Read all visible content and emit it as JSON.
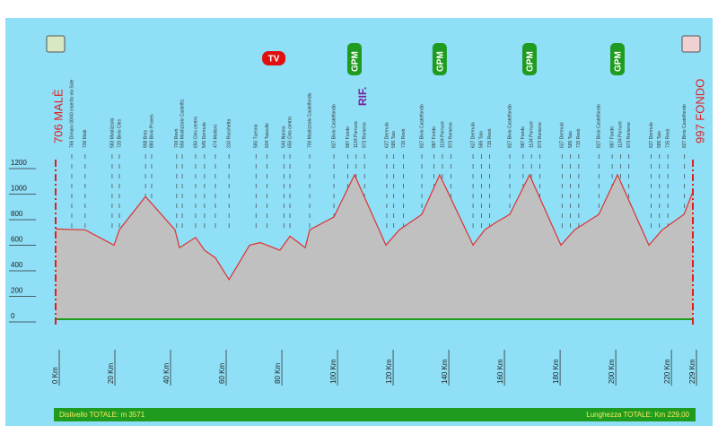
{
  "chart_data": {
    "type": "area",
    "start_label": "706 MALÈ",
    "finish_label": "997 FONDO",
    "x": [
      0,
      10.6,
      21,
      22.9,
      32.3,
      42.9,
      44.5,
      50.3,
      53.5,
      57.4,
      62.3,
      69.7,
      73.5,
      80.6,
      84.2,
      89.7,
      91.3,
      100,
      107.4,
      118.7,
      123.5,
      131.6,
      138,
      150,
      154.2,
      158.4,
      163.2,
      170.3,
      181.6,
      186.5,
      195.2,
      201.9,
      213.2,
      218,
      225.8,
      229
    ],
    "values": [
      706,
      700,
      580,
      700,
      960,
      700,
      560,
      640,
      540,
      480,
      310,
      580,
      600,
      540,
      650,
      560,
      700,
      800,
      1130,
      580,
      700,
      820,
      1130,
      580,
      700,
      760,
      820,
      1130,
      580,
      700,
      820,
      1130,
      580,
      700,
      820,
      997
    ],
    "xlim": [
      0,
      229
    ],
    "ylim": [
      0,
      1200
    ],
    "xticks": [
      {
        "value": 0,
        "label": "0 Km"
      },
      {
        "value": 20,
        "label": "20 Km"
      },
      {
        "value": 40,
        "label": "40 Km"
      },
      {
        "value": 60,
        "label": "60 Km"
      },
      {
        "value": 80,
        "label": "80 Km"
      },
      {
        "value": 100,
        "label": "100 Km"
      },
      {
        "value": 120,
        "label": "120 Km"
      },
      {
        "value": 140,
        "label": "140 Km"
      },
      {
        "value": 160,
        "label": "160 Km"
      },
      {
        "value": 180,
        "label": "180 Km"
      },
      {
        "value": 200,
        "label": "200 Km"
      },
      {
        "value": 220,
        "label": "220 Km"
      },
      {
        "value": 229,
        "label": "229 Km"
      }
    ],
    "yticks": [
      0,
      200,
      400,
      600,
      800,
      1000,
      1200
    ],
    "fill_color": "#c0c0c0",
    "line_color": "#e03030",
    "tv": {
      "label": "TV",
      "km": 78.4
    },
    "rif": {
      "label": "RIF.",
      "km": 110.6
    },
    "gpm": {
      "label": "GPM",
      "km": [
        107.4,
        138,
        170.3,
        201.9
      ]
    },
    "localities": [
      {
        "km": 5.8,
        "label": "766 Dimaro 00/40 inserito via Sole"
      },
      {
        "km": 10.6,
        "label": "736 Malè"
      },
      {
        "km": 20.3,
        "label": "583 Mostizzolo"
      },
      {
        "km": 22.9,
        "label": "720 Bivio Cles"
      },
      {
        "km": 32.3,
        "label": "958 Brez"
      },
      {
        "km": 34.5,
        "label": "880 Bivio Proves"
      },
      {
        "km": 43.5,
        "label": "700 Revò"
      },
      {
        "km": 45.5,
        "label": "556 Mostizzolo Castelfiz."
      },
      {
        "km": 50.3,
        "label": "650 Cles centro"
      },
      {
        "km": 53.5,
        "label": "545 Dermulo"
      },
      {
        "km": 57.4,
        "label": "474 Mollaro"
      },
      {
        "km": 62.3,
        "label": "310 Rocchetta"
      },
      {
        "km": 72,
        "label": "580 Tuenno"
      },
      {
        "km": 76,
        "label": "604 Tassullo"
      },
      {
        "km": 82,
        "label": "540 Nanno"
      },
      {
        "km": 84.2,
        "label": "650 Cles centro"
      },
      {
        "km": 91.3,
        "label": "700 Mostizzolo Castelfondo"
      },
      {
        "km": 100,
        "label": "827 Bivio Castelfondo"
      },
      {
        "km": 105,
        "label": "987 Fondo"
      },
      {
        "km": 108,
        "label": "1134 Pornure"
      },
      {
        "km": 111,
        "label": "973 Romeno"
      },
      {
        "km": 119,
        "label": "627 Dermulo"
      },
      {
        "km": 121.5,
        "label": "585 Taio"
      },
      {
        "km": 125,
        "label": "715 Revò"
      },
      {
        "km": 131.6,
        "label": "827 Bivio Castelfondo"
      },
      {
        "km": 136,
        "label": "987 Fondo"
      },
      {
        "km": 139,
        "label": "1134 Pornure"
      },
      {
        "km": 142,
        "label": "973 Romeno"
      },
      {
        "km": 150,
        "label": "627 Dermulo"
      },
      {
        "km": 153,
        "label": "585 Taio"
      },
      {
        "km": 156,
        "label": "715 Revò"
      },
      {
        "km": 163.2,
        "label": "827 Bivio Castelfondo"
      },
      {
        "km": 168,
        "label": "987 Fondo"
      },
      {
        "km": 171,
        "label": "1134 Pornure"
      },
      {
        "km": 174,
        "label": "973 Romeno"
      },
      {
        "km": 182,
        "label": "627 Dermulo"
      },
      {
        "km": 185,
        "label": "585 Taio"
      },
      {
        "km": 188,
        "label": "715 Revò"
      },
      {
        "km": 195.2,
        "label": "827 Bivio Castelfondo"
      },
      {
        "km": 200,
        "label": "987 Fondo"
      },
      {
        "km": 203,
        "label": "1134 Pornure"
      },
      {
        "km": 206,
        "label": "973 Romeno"
      },
      {
        "km": 214,
        "label": "627 Dermulo"
      },
      {
        "km": 217,
        "label": "585 Taio"
      },
      {
        "km": 220,
        "label": "715 Revò"
      },
      {
        "km": 226,
        "label": "827 Bivio Castelfondo"
      }
    ],
    "footer_left": "Dislivello TOTALE: m 3571",
    "footer_right": "Lunghezza TOTALE: Km 229,00"
  }
}
